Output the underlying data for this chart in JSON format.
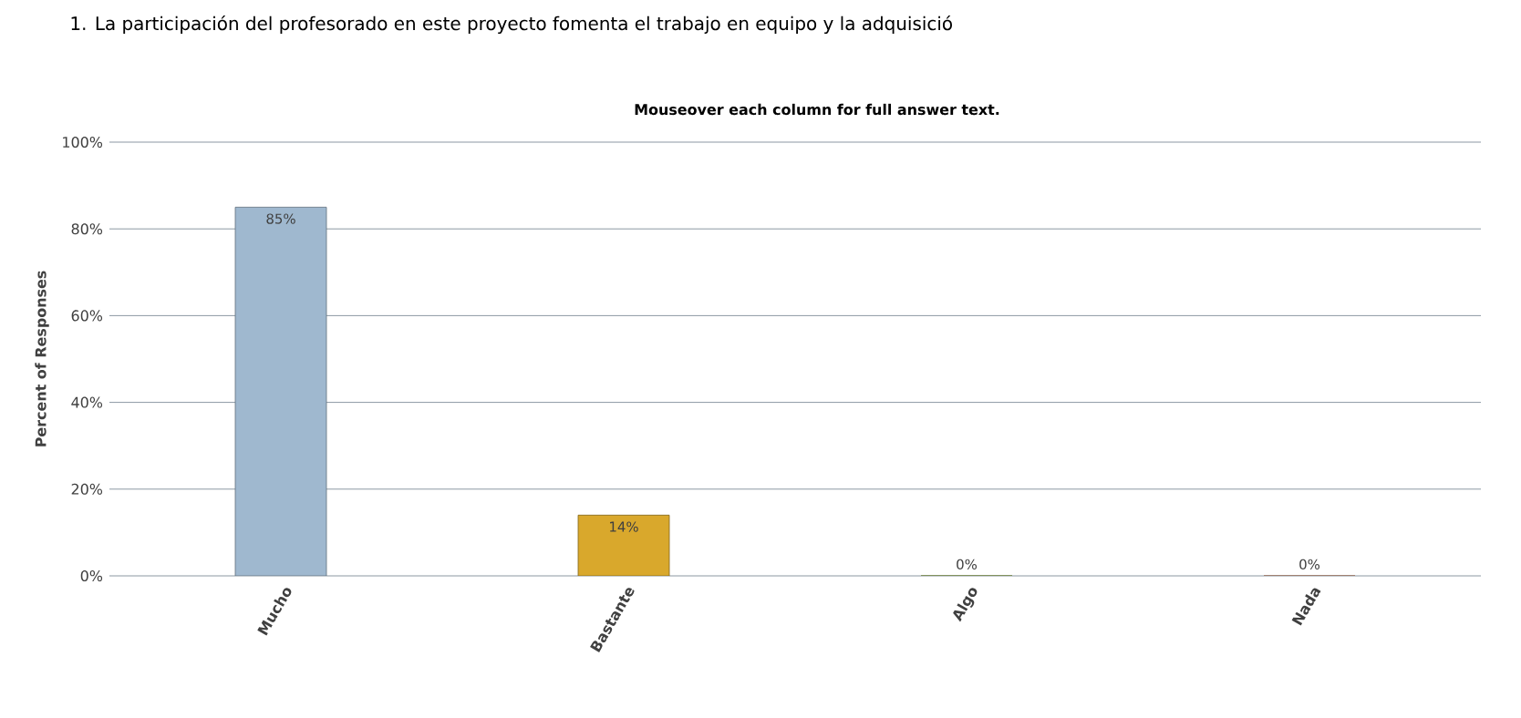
{
  "chart_data": {
    "type": "bar",
    "title": "1. La participación del profesorado en este proyecto fomenta el trabajo en equipo y la adquisició",
    "subtitle": "Mouseover each column for full answer text.",
    "ylabel": "Percent of Responses",
    "categories": [
      "Mucho",
      "Bastante",
      "Algo",
      "Nada"
    ],
    "values": [
      85,
      14,
      0,
      0
    ],
    "value_labels": [
      "85%",
      "14%",
      "0%",
      "0%"
    ],
    "colors": [
      "#9fb8cf",
      "#d9a82c",
      "#9ab830",
      "#e89060"
    ],
    "ylim": [
      0,
      100
    ],
    "yticks": [
      {
        "value": 0,
        "label": "0%"
      },
      {
        "value": 20,
        "label": "20%"
      },
      {
        "value": 40,
        "label": "40%"
      },
      {
        "value": 60,
        "label": "60%"
      },
      {
        "value": 80,
        "label": "80%"
      },
      {
        "value": 100,
        "label": "100%"
      }
    ],
    "grid": "y"
  }
}
